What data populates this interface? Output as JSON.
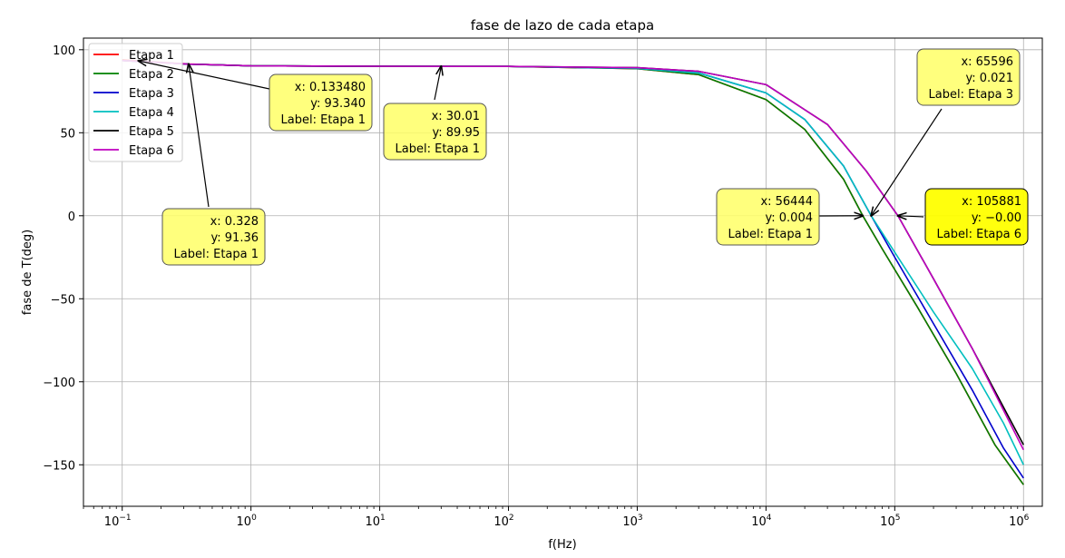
{
  "chart_data": {
    "type": "line",
    "title": "fase de lazo de cada etapa",
    "xlabel": "f(Hz)",
    "ylabel": "fase de T(deg)",
    "xscale": "log",
    "xlim": [
      0.05,
      1400000
    ],
    "ylim": [
      -175,
      107
    ],
    "grid": true,
    "legend_position": "top-left",
    "x_ticks": [
      {
        "value": 0.1,
        "base": "10",
        "exp": "−1"
      },
      {
        "value": 1,
        "base": "10",
        "exp": "0"
      },
      {
        "value": 10,
        "base": "10",
        "exp": "1"
      },
      {
        "value": 100,
        "base": "10",
        "exp": "2"
      },
      {
        "value": 1000,
        "base": "10",
        "exp": "3"
      },
      {
        "value": 10000,
        "base": "10",
        "exp": "4"
      },
      {
        "value": 100000,
        "base": "10",
        "exp": "5"
      },
      {
        "value": 1000000,
        "base": "10",
        "exp": "6"
      }
    ],
    "y_ticks": [
      {
        "value": 100,
        "label": "100"
      },
      {
        "value": 50,
        "label": "50"
      },
      {
        "value": 0,
        "label": "0"
      },
      {
        "value": -50,
        "label": "−50"
      },
      {
        "value": -100,
        "label": "−100"
      },
      {
        "value": -150,
        "label": "−150"
      }
    ],
    "series": [
      {
        "name": "Etapa 1",
        "color": "#ff0000",
        "x": [
          0.1,
          0.133,
          0.33,
          1,
          10,
          100,
          1000,
          3000,
          10000,
          20000,
          40000,
          56444,
          80000,
          150000,
          300000,
          600000,
          1000000
        ],
        "y": [
          94,
          93.3,
          91.4,
          90.3,
          90.03,
          89.95,
          88.6,
          85,
          70,
          52,
          22,
          0.004,
          -20,
          -55,
          -95,
          -138,
          -162
        ]
      },
      {
        "name": "Etapa 2",
        "color": "#008000",
        "x": [
          0.1,
          0.33,
          1,
          10,
          100,
          1000,
          3000,
          10000,
          20000,
          40000,
          56444,
          80000,
          150000,
          300000,
          600000,
          1000000
        ],
        "y": [
          93.5,
          91.3,
          90.3,
          90.03,
          89.95,
          88.6,
          85,
          70,
          52,
          22,
          0,
          -20,
          -55,
          -95,
          -138,
          -162
        ]
      },
      {
        "name": "Etapa 3",
        "color": "#0000cc",
        "x": [
          0.1,
          0.33,
          1,
          10,
          100,
          1000,
          3000,
          10000,
          20000,
          40000,
          65596,
          100000,
          200000,
          400000,
          700000,
          1000000
        ],
        "y": [
          93.5,
          91.3,
          90.3,
          90.03,
          89.95,
          88.8,
          86,
          74,
          58,
          30,
          0.021,
          -25,
          -65,
          -105,
          -140,
          -158
        ]
      },
      {
        "name": "Etapa 4",
        "color": "#00bfbf",
        "x": [
          0.1,
          0.33,
          1,
          10,
          100,
          1000,
          3000,
          10000,
          20000,
          40000,
          65596,
          100000,
          200000,
          400000,
          700000,
          1000000
        ],
        "y": [
          93.5,
          91.3,
          90.3,
          90.03,
          89.95,
          88.8,
          86,
          74,
          58,
          30,
          0,
          -22,
          -58,
          -92,
          -125,
          -150
        ]
      },
      {
        "name": "Etapa 5",
        "color": "#000000",
        "x": [
          0.1,
          0.33,
          1,
          10,
          100,
          1000,
          3000,
          10000,
          30000,
          60000,
          105881,
          200000,
          400000,
          1000000
        ],
        "y": [
          93.5,
          91.3,
          90.3,
          90.03,
          89.95,
          89.2,
          87,
          79,
          55,
          27,
          0,
          -38,
          -80,
          -138
        ]
      },
      {
        "name": "Etapa 6",
        "color": "#bf00bf",
        "x": [
          0.1,
          0.33,
          1,
          10,
          100,
          1000,
          3000,
          10000,
          30000,
          60000,
          105881,
          200000,
          400000,
          1000000
        ],
        "y": [
          93.5,
          91.3,
          90.3,
          90.03,
          89.95,
          89.2,
          87,
          79,
          55,
          27,
          0,
          -38,
          -80,
          -141
        ]
      }
    ],
    "annotations": [
      {
        "point": [
          0.13348,
          93.34
        ],
        "lines": [
          "x: 0.133480",
          "y: 93.340",
          "Label: Etapa 1"
        ],
        "highlight": false
      },
      {
        "point": [
          30.01,
          89.95
        ],
        "lines": [
          "x: 30.01",
          "y: 89.95",
          "Label: Etapa 1"
        ],
        "highlight": false
      },
      {
        "point": [
          0.328,
          91.36
        ],
        "lines": [
          "x: 0.328",
          "y: 91.36",
          "Label: Etapa 1"
        ],
        "highlight": false
      },
      {
        "point": [
          56444,
          0.004
        ],
        "lines": [
          "x: 56444",
          "y: 0.004",
          "Label: Etapa 1"
        ],
        "highlight": false
      },
      {
        "point": [
          65596,
          0.021
        ],
        "lines": [
          "x: 65596",
          "y: 0.021",
          "Label: Etapa 3"
        ],
        "highlight": false
      },
      {
        "point": [
          105881,
          0
        ],
        "lines": [
          "x: 105881",
          "y: −0.00",
          "Label: Etapa 6"
        ],
        "highlight": true
      }
    ]
  }
}
